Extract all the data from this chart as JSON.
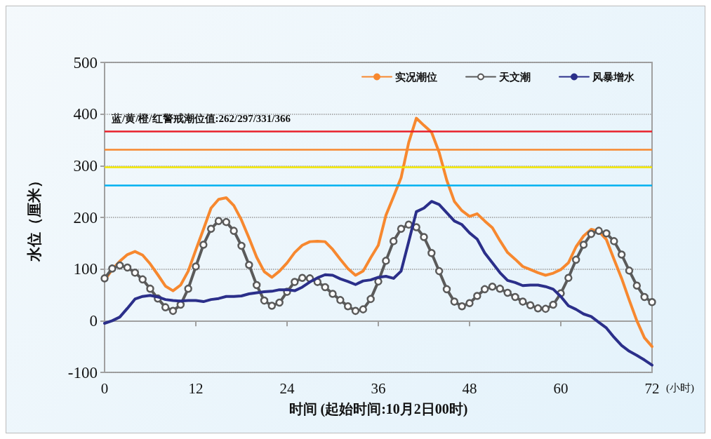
{
  "chart_data": {
    "type": "line",
    "xlabel": "时间 (起始时间:10月2日00时)",
    "ylabel": "水位（厘米）",
    "x": [
      0,
      1,
      2,
      3,
      4,
      5,
      6,
      7,
      8,
      9,
      10,
      11,
      12,
      13,
      14,
      15,
      16,
      17,
      18,
      19,
      20,
      21,
      22,
      23,
      24,
      25,
      26,
      27,
      28,
      29,
      30,
      31,
      32,
      33,
      34,
      35,
      36,
      37,
      38,
      39,
      40,
      41,
      42,
      43,
      44,
      45,
      46,
      47,
      48,
      49,
      50,
      51,
      52,
      53,
      54,
      55,
      56,
      57,
      58,
      59,
      60,
      61,
      62,
      63,
      64,
      65,
      66,
      67,
      68,
      69,
      70,
      71,
      72
    ],
    "series": [
      {
        "name": "实况潮位",
        "color": "#f7882f",
        "marker": "none",
        "values": [
          78,
          99,
          115,
          128,
          134,
          127,
          110,
          89,
          67,
          58,
          69,
          96,
          137,
          177,
          218,
          235,
          238,
          223,
          195,
          160,
          123,
          95,
          84,
          96,
          112,
          132,
          146,
          153,
          154,
          153,
          138,
          119,
          101,
          88,
          96,
          122,
          146,
          204,
          240,
          277,
          345,
          392,
          378,
          365,
          326,
          272,
          231,
          213,
          202,
          207,
          193,
          180,
          155,
          132,
          119,
          105,
          99,
          93,
          88,
          92,
          99,
          112,
          143,
          164,
          177,
          173,
          157,
          119,
          82,
          40,
          0,
          -33,
          -50
        ]
      },
      {
        "name": "天文潮",
        "color": "#5a5a5a",
        "marker": "circle",
        "values": [
          82,
          101,
          107,
          103,
          93,
          80,
          62,
          43,
          26,
          19,
          31,
          62,
          105,
          147,
          178,
          193,
          191,
          174,
          145,
          108,
          69,
          39,
          29,
          35,
          56,
          75,
          83,
          82,
          75,
          65,
          52,
          40,
          28,
          19,
          22,
          42,
          76,
          116,
          154,
          178,
          186,
          181,
          162,
          131,
          96,
          61,
          37,
          28,
          34,
          48,
          61,
          66,
          62,
          54,
          46,
          37,
          30,
          24,
          23,
          31,
          53,
          83,
          118,
          147,
          168,
          174,
          169,
          154,
          128,
          97,
          68,
          46,
          36
        ]
      },
      {
        "name": "风暴增水",
        "color": "#2b2f8a",
        "marker": "none",
        "values": [
          -5,
          0,
          7,
          24,
          42,
          47,
          49,
          46,
          41,
          39,
          38,
          39,
          39,
          37,
          41,
          43,
          47,
          47,
          48,
          52,
          54,
          56,
          57,
          60,
          60,
          58,
          65,
          75,
          83,
          89,
          88,
          81,
          76,
          70,
          77,
          79,
          84,
          86,
          82,
          96,
          153,
          211,
          218,
          231,
          225,
          209,
          193,
          186,
          170,
          158,
          131,
          112,
          93,
          78,
          74,
          68,
          69,
          69,
          66,
          61,
          47,
          29,
          22,
          13,
          8,
          -3,
          -14,
          -32,
          -48,
          -59,
          -67,
          -76,
          -86
        ]
      }
    ],
    "xlim": [
      0,
      72
    ],
    "xticks": [
      0,
      12,
      24,
      36,
      48,
      60,
      72
    ],
    "ylim": [
      -100,
      500
    ],
    "yticks": [
      -100,
      0,
      100,
      200,
      300,
      400,
      500
    ],
    "ref_lines": [
      {
        "axis": "y",
        "value": 262,
        "color": "#00b0f0"
      },
      {
        "axis": "y",
        "value": 297,
        "color": "#f2e600"
      },
      {
        "axis": "y",
        "value": 331,
        "color": "#f7882f"
      },
      {
        "axis": "y",
        "value": 366,
        "color": "#e8202a"
      }
    ],
    "annotations": [
      "蓝/黄/橙/红警戒潮位值:262/297/331/366",
      "(小时)"
    ],
    "grid": "y",
    "legend": "top right",
    "line_style": "solid"
  }
}
